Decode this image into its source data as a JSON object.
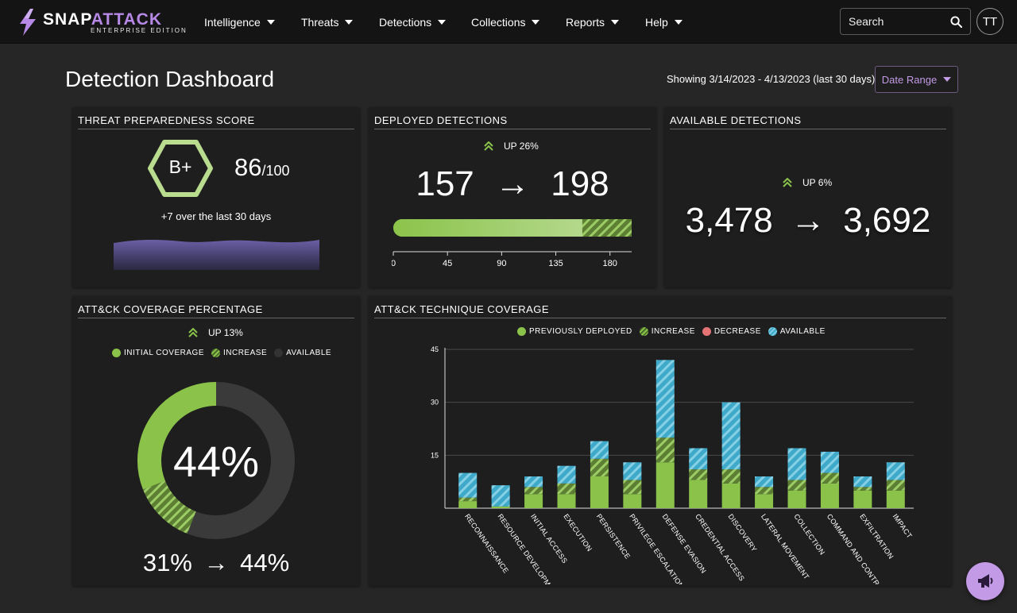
{
  "brand": {
    "name_a": "SNAP",
    "name_b": "ATTACK",
    "edition": "ENTERPRISE EDITION"
  },
  "nav": [
    "Intelligence",
    "Threats",
    "Detections",
    "Collections",
    "Reports",
    "Help"
  ],
  "search": {
    "placeholder": "Search"
  },
  "user": {
    "initials": "TT"
  },
  "page": {
    "title": "Detection Dashboard",
    "showing": "Showing 3/14/2023 - 4/13/2023 (last 30 days)",
    "date_range_label": "Date Range"
  },
  "colors": {
    "green": "#8bc34a",
    "light_green": "#a5cf7e",
    "blue": "#3fa9c9",
    "red": "#e57373",
    "purple": "#b689e6"
  },
  "preparedness": {
    "title": "THREAT PREPAREDNESS SCORE",
    "grade": "B+",
    "score": "86",
    "score_max": "/100",
    "note": "+7 over the last 30 days"
  },
  "deployed": {
    "title": "DEPLOYED DETECTIONS",
    "change": "UP 26%",
    "before": "157",
    "after": "198",
    "bar_before": 157,
    "bar_after": 198,
    "axis_max": 198,
    "ticks": [
      "0",
      "45",
      "90",
      "135",
      "180"
    ]
  },
  "available": {
    "title": "AVAILABLE DETECTIONS",
    "change": "UP 6%",
    "before": "3,478",
    "after": "3,692"
  },
  "coverage": {
    "title": "ATT&CK COVERAGE PERCENTAGE",
    "change": "UP 13%",
    "legend": [
      "INITIAL COVERAGE",
      "INCREASE",
      "AVAILABLE"
    ],
    "center": "44%",
    "summary_before": "31%",
    "summary_after": "44%",
    "initial_pct": 31,
    "final_pct": 44
  },
  "technique": {
    "title": "ATT&CK TECHNIQUE COVERAGE",
    "legend": [
      "PREVIOUSLY DEPLOYED",
      "INCREASE",
      "DECREASE",
      "AVAILABLE"
    ]
  },
  "chart_data": {
    "type": "bar",
    "stacked": true,
    "ylim": [
      0,
      45
    ],
    "yticks": [
      15,
      30,
      45
    ],
    "grid": true,
    "legend_position": "top",
    "categories": [
      "RECONNAISSANCE",
      "RESOURCE DEVELOPMENT",
      "INITIAL ACCESS",
      "EXECUTION",
      "PERSISTENCE",
      "PRIVILEGE ESCALATION",
      "DEFENSE EVASION",
      "CREDENTIAL ACCESS",
      "DISCOVERY",
      "LATERAL MOVEMENT",
      "COLLECTION",
      "COMMAND AND CONTROL",
      "EXFILTRATION",
      "IMPACT"
    ],
    "series": [
      {
        "name": "PREVIOUSLY DEPLOYED",
        "values": [
          2,
          0.5,
          4,
          4,
          9,
          4,
          13,
          8,
          7,
          4,
          5,
          7,
          5,
          5
        ]
      },
      {
        "name": "INCREASE",
        "values": [
          1,
          0,
          2,
          3,
          5,
          4,
          7,
          3,
          4,
          2,
          3,
          3,
          1,
          3
        ]
      },
      {
        "name": "DECREASE",
        "values": [
          0,
          0,
          0,
          0,
          0,
          0,
          0,
          0,
          0,
          0,
          0,
          0,
          0,
          0
        ]
      },
      {
        "name": "AVAILABLE",
        "values": [
          7,
          6,
          3,
          5,
          5,
          5,
          22,
          6,
          19,
          3,
          9,
          6,
          3,
          5
        ]
      }
    ]
  }
}
